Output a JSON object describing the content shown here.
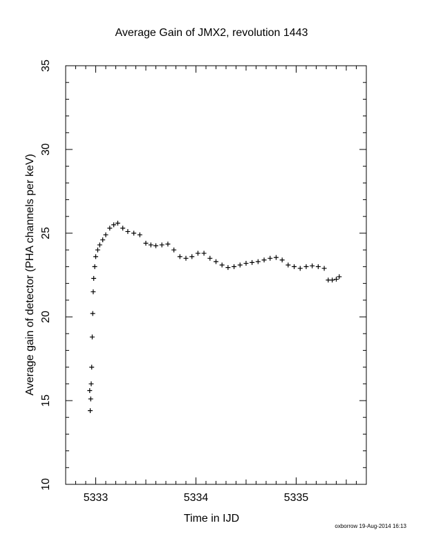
{
  "chart_data": {
    "type": "scatter",
    "title": "Average Gain of JMX2, revolution 1443",
    "xlabel": "Time in IJD",
    "ylabel": "Average gain of detector (PHA channels per keV)",
    "xlim": [
      5332.7,
      5335.7
    ],
    "ylim": [
      10,
      35
    ],
    "x_ticks": [
      5333,
      5334,
      5335
    ],
    "x_tick_labels": [
      "5333",
      "5334",
      "5335"
    ],
    "y_ticks": [
      10,
      15,
      20,
      25,
      30,
      35
    ],
    "y_tick_labels": [
      "10",
      "15",
      "20",
      "25",
      "30",
      "35"
    ],
    "marker": "plus",
    "grid": false,
    "legend": "none",
    "series": [
      {
        "x": [
          5332.94,
          5332.945,
          5332.95,
          5332.955,
          5332.96,
          5332.965,
          5332.97,
          5332.975,
          5332.98,
          5332.99,
          5333.0,
          5333.02,
          5333.04,
          5333.07,
          5333.1,
          5333.14,
          5333.18,
          5333.22,
          5333.27,
          5333.32,
          5333.38,
          5333.44,
          5333.5,
          5333.55,
          5333.6,
          5333.66,
          5333.72,
          5333.78,
          5333.84,
          5333.9,
          5333.96,
          5334.02,
          5334.08,
          5334.14,
          5334.2,
          5334.26,
          5334.32,
          5334.38,
          5334.44,
          5334.5,
          5334.56,
          5334.62,
          5334.68,
          5334.74,
          5334.8,
          5334.86,
          5334.92,
          5334.98,
          5335.04,
          5335.1,
          5335.16,
          5335.22,
          5335.28,
          5335.32,
          5335.36,
          5335.4,
          5335.43
        ],
        "y": [
          15.6,
          14.4,
          15.1,
          16.0,
          17.0,
          18.8,
          20.2,
          21.5,
          22.3,
          23.0,
          23.6,
          24.0,
          24.3,
          24.6,
          24.9,
          25.3,
          25.5,
          25.6,
          25.3,
          25.1,
          25.0,
          24.9,
          24.4,
          24.3,
          24.25,
          24.3,
          24.35,
          24.0,
          23.6,
          23.5,
          23.6,
          23.8,
          23.8,
          23.5,
          23.3,
          23.1,
          22.95,
          23.0,
          23.1,
          23.2,
          23.25,
          23.3,
          23.4,
          23.5,
          23.55,
          23.4,
          23.1,
          23.0,
          22.9,
          23.0,
          23.05,
          23.0,
          22.9,
          22.2,
          22.2,
          22.25,
          22.4
        ]
      }
    ]
  },
  "footer": "oxborrow 19-Aug-2014 16:13"
}
